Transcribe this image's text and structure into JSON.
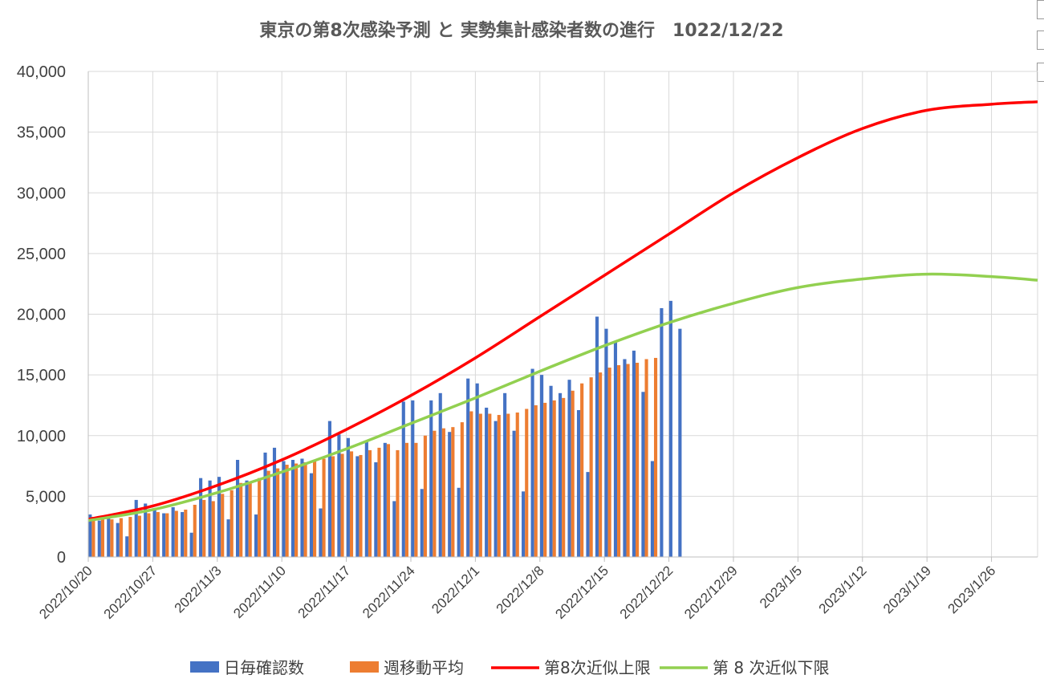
{
  "chart_data": {
    "type": "bar+line",
    "title": "東京の第8次感染予測 と 実勢集計感染者数の進行　1022/12/22",
    "ylim": [
      0,
      40000
    ],
    "yticks": [
      0,
      5000,
      10000,
      15000,
      20000,
      25000,
      30000,
      35000,
      40000
    ],
    "ytick_labels": [
      "0",
      "5,000",
      "10,000",
      "15,000",
      "20,000",
      "25,000",
      "30,000",
      "35,000",
      "40,000"
    ],
    "x_start": "2022-10-20",
    "x_end": "2023-01-31",
    "xtick_labels": [
      "2022/10/20",
      "2022/10/27",
      "2022/11/3",
      "2022/11/10",
      "2022/11/17",
      "2022/11/24",
      "2022/12/1",
      "2022/12/8",
      "2022/12/15",
      "2022/12/22",
      "2022/12/29",
      "2023/1/5",
      "2023/1/12",
      "2023/1/19",
      "2023/1/26"
    ],
    "grid": true,
    "legend_position": "bottom",
    "series": [
      {
        "name": "日毎確認数",
        "type": "bar",
        "color": "#4472c4",
        "start_date": "2022-10-20",
        "values": [
          3500,
          3000,
          3200,
          2800,
          1700,
          4700,
          4400,
          4000,
          3600,
          4100,
          3700,
          2000,
          6500,
          6300,
          6600,
          3100,
          8000,
          6300,
          3500,
          8600,
          9000,
          7900,
          8000,
          8100,
          6900,
          4000,
          11200,
          10100,
          9800,
          8300,
          9500,
          7800,
          9400,
          4600,
          12800,
          12900,
          5600,
          12900,
          13500,
          10300,
          5700,
          14700,
          14300,
          12300,
          11200,
          13500,
          10400,
          5400,
          15500,
          15000,
          14100,
          13500,
          14600,
          12100,
          7000,
          19800,
          18800,
          17700,
          16300,
          17000,
          13600,
          7900,
          20500,
          21100,
          18800
        ]
      },
      {
        "name": "週移動平均",
        "type": "bar",
        "color": "#ed7d31",
        "start_date": "2022-10-20",
        "values": [
          3300,
          3200,
          3100,
          3200,
          3300,
          3400,
          3600,
          3700,
          3600,
          3800,
          3900,
          4300,
          4700,
          4600,
          5200,
          5500,
          6100,
          6200,
          6500,
          7100,
          7300,
          7600,
          7700,
          7800,
          8000,
          8100,
          8300,
          8500,
          8700,
          8400,
          8800,
          9000,
          9300,
          8800,
          9400,
          9400,
          10000,
          10400,
          10600,
          10700,
          11100,
          12000,
          11800,
          11800,
          11700,
          11800,
          11900,
          12200,
          12500,
          12700,
          12900,
          13100,
          13700,
          14300,
          14800,
          15200,
          15600,
          15800,
          15900,
          16000,
          16300,
          16400
        ]
      },
      {
        "name": "第8次近似上限",
        "type": "line",
        "color": "#ff0000",
        "x": [
          "2022-10-20",
          "2022-10-27",
          "2022-11-03",
          "2022-11-10",
          "2022-11-17",
          "2022-11-24",
          "2022-12-01",
          "2022-12-08",
          "2022-12-15",
          "2022-12-22",
          "2022-12-29",
          "2023-01-05",
          "2023-01-12",
          "2023-01-19",
          "2023-01-26",
          "2023-01-31"
        ],
        "values": [
          3100,
          4200,
          5900,
          8000,
          10500,
          13300,
          16400,
          19800,
          23200,
          26600,
          30000,
          32900,
          35300,
          36800,
          37300,
          37500
        ]
      },
      {
        "name": "第 8 次近似下限",
        "type": "line",
        "color": "#92d050",
        "x": [
          "2022-10-20",
          "2022-10-27",
          "2022-11-03",
          "2022-11-10",
          "2022-11-17",
          "2022-11-24",
          "2022-12-01",
          "2022-12-08",
          "2022-12-15",
          "2022-12-22",
          "2022-12-29",
          "2023-01-05",
          "2023-01-12",
          "2023-01-19",
          "2023-01-26",
          "2023-01-31"
        ],
        "values": [
          3000,
          3900,
          5300,
          7000,
          8900,
          11000,
          13100,
          15300,
          17400,
          19300,
          20900,
          22200,
          22900,
          23300,
          23100,
          22800
        ]
      }
    ]
  }
}
